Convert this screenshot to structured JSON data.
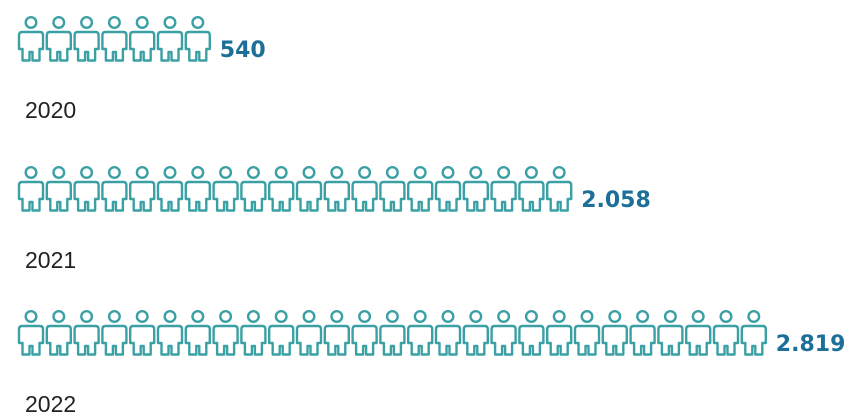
{
  "chart_data": {
    "type": "bar",
    "categories": [
      "2020",
      "2021",
      "2022"
    ],
    "values": [
      540,
      2058,
      2819
    ],
    "value_labels": [
      "540",
      "2.058",
      "2.819"
    ],
    "icon_counts": [
      7,
      20,
      27
    ],
    "icon": "person-icon",
    "colors": {
      "icon": "#3aa0a4",
      "value": "#1b6f99",
      "label": "#222222"
    }
  }
}
